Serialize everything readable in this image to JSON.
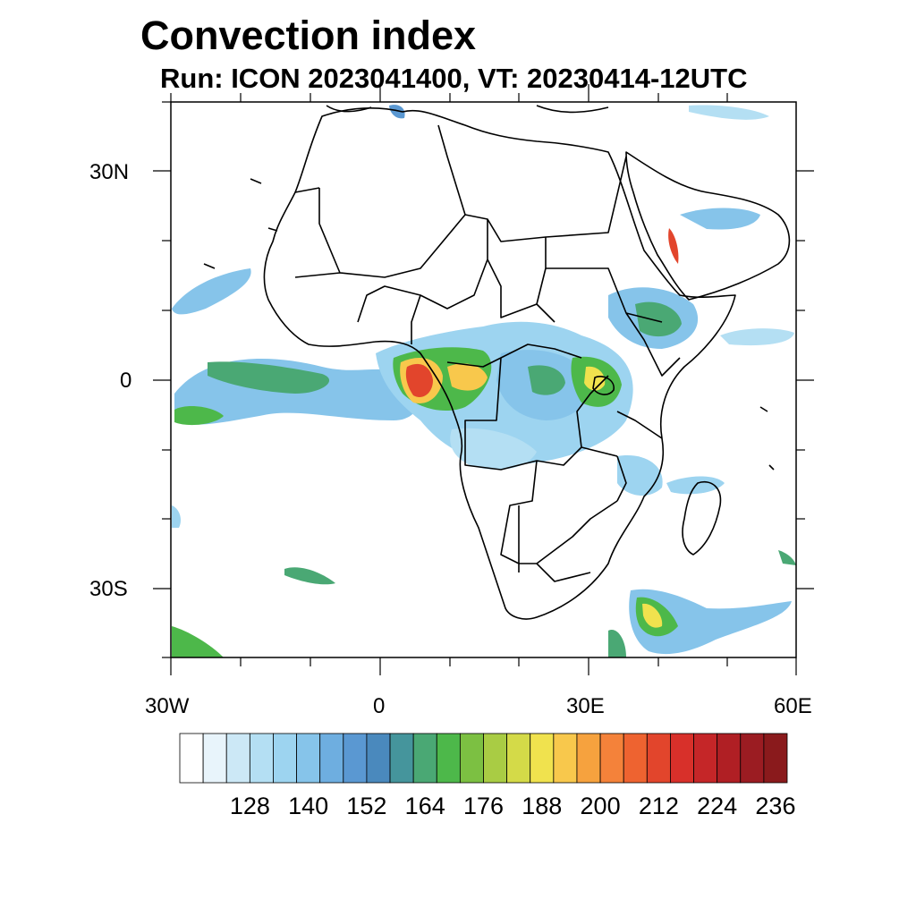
{
  "title": "Convection index",
  "subtitle": "Run: ICON 2023041400,  VT: 20230414-12UTC",
  "lat_labels": [
    "30N",
    "0",
    "30S"
  ],
  "lon_labels": [
    "30W",
    "0",
    "30E",
    "60E"
  ],
  "colorbar": {
    "labels": [
      "128",
      "140",
      "152",
      "164",
      "176",
      "188",
      "200",
      "212",
      "224",
      "236"
    ],
    "colors": [
      "#ffffff",
      "#e8f4fb",
      "#cce8f6",
      "#b4dff3",
      "#9dd4f0",
      "#86c4ea",
      "#6eaee0",
      "#5a98d2",
      "#4a89bd",
      "#45959c",
      "#4aa874",
      "#4db84a",
      "#7cc042",
      "#a9cc44",
      "#d4da48",
      "#f0e24e",
      "#f8c84c",
      "#f6a23e",
      "#f4823a",
      "#ee6330",
      "#e2452c",
      "#d8302a",
      "#c52628",
      "#b01f24",
      "#9b1c22",
      "#8a1a1c"
    ]
  }
}
